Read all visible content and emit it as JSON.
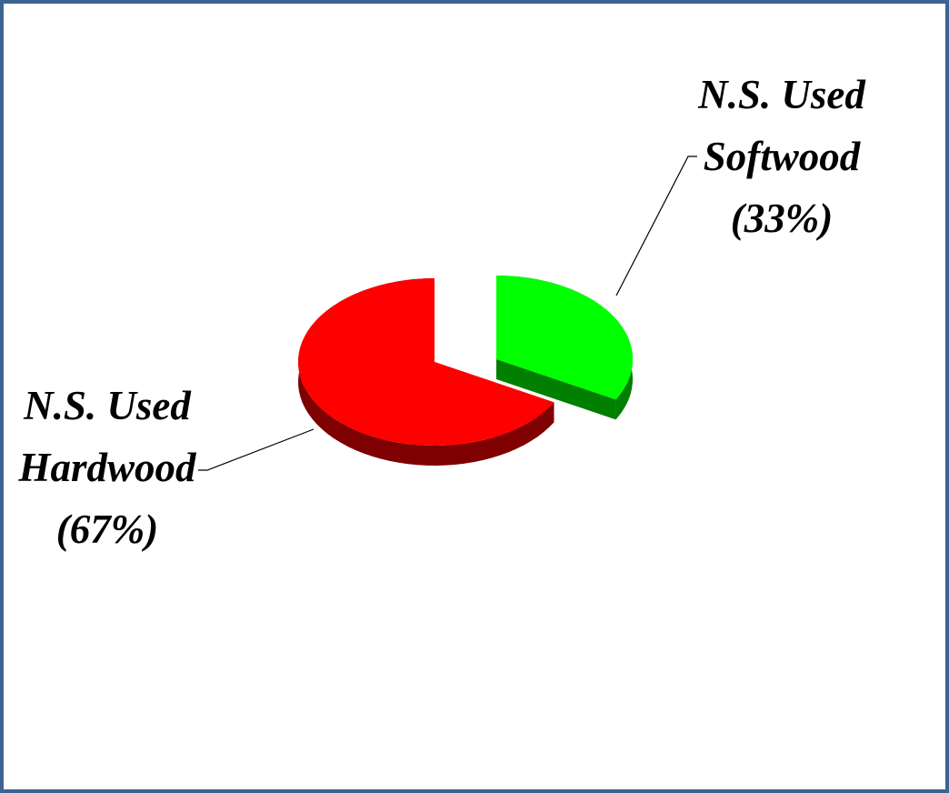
{
  "chart_data": {
    "type": "pie3d",
    "categories": [
      "N.S. Used Softwood",
      "N.S. Used Hardwood"
    ],
    "values": [
      33,
      67
    ],
    "value_labels": [
      "(33%)",
      "(67%)"
    ],
    "colors": [
      "#00ff00",
      "#ff0000"
    ]
  }
}
